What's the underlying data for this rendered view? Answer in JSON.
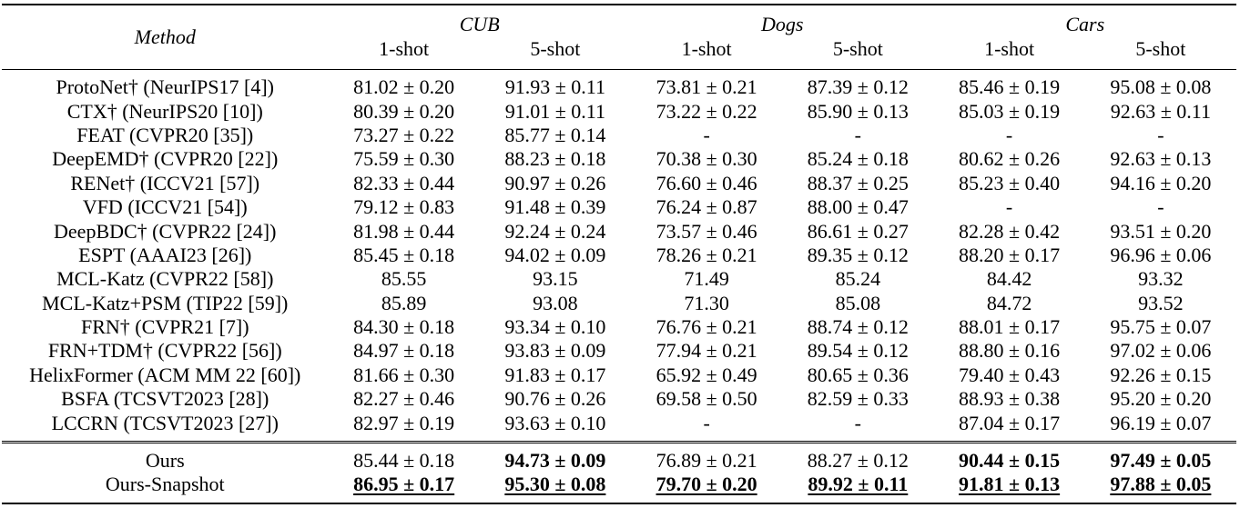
{
  "header": {
    "method_label": "Method",
    "groups": [
      "CUB",
      "Dogs",
      "Cars"
    ],
    "shots": [
      "1-shot",
      "5-shot",
      "1-shot",
      "5-shot",
      "1-shot",
      "5-shot"
    ]
  },
  "rows": [
    {
      "method": "ProtoNet† (NeurIPS17 [4])",
      "values": [
        "81.02 ± 0.20",
        "91.93 ± 0.11",
        "73.81 ± 0.21",
        "87.39 ± 0.12",
        "85.46 ± 0.19",
        "95.08 ± 0.08"
      ]
    },
    {
      "method": "CTX† (NeurIPS20 [10])",
      "values": [
        "80.39 ± 0.20",
        "91.01 ± 0.11",
        "73.22 ± 0.22",
        "85.90 ± 0.13",
        "85.03 ± 0.19",
        "92.63 ± 0.11"
      ]
    },
    {
      "method": "FEAT (CVPR20 [35])",
      "values": [
        "73.27 ± 0.22",
        "85.77 ± 0.14",
        "-",
        "-",
        "-",
        "-"
      ]
    },
    {
      "method": "DeepEMD† (CVPR20 [22])",
      "values": [
        "75.59 ± 0.30",
        "88.23 ± 0.18",
        "70.38 ± 0.30",
        "85.24 ± 0.18",
        "80.62 ± 0.26",
        "92.63 ± 0.13"
      ]
    },
    {
      "method": "RENet† (ICCV21 [57])",
      "values": [
        "82.33 ± 0.44",
        "90.97 ± 0.26",
        "76.60 ± 0.46",
        "88.37 ± 0.25",
        "85.23 ± 0.40",
        "94.16 ± 0.20"
      ]
    },
    {
      "method": "VFD (ICCV21 [54])",
      "values": [
        "79.12 ± 0.83",
        "91.48 ± 0.39",
        "76.24 ± 0.87",
        "88.00 ± 0.47",
        "-",
        "-"
      ]
    },
    {
      "method": "DeepBDC† (CVPR22 [24])",
      "values": [
        "81.98 ± 0.44",
        "92.24 ± 0.24",
        "73.57 ± 0.46",
        "86.61 ± 0.27",
        "82.28 ± 0.42",
        "93.51 ± 0.20"
      ]
    },
    {
      "method": "ESPT (AAAI23 [26])",
      "values": [
        "85.45 ± 0.18",
        "94.02 ± 0.09",
        "78.26 ± 0.21",
        "89.35 ± 0.12",
        "88.20 ± 0.17",
        "96.96 ± 0.06"
      ]
    },
    {
      "method": "MCL-Katz (CVPR22 [58])",
      "values": [
        "85.55",
        "93.15",
        "71.49",
        "85.24",
        "84.42",
        "93.32"
      ]
    },
    {
      "method": "MCL-Katz+PSM (TIP22 [59])",
      "values": [
        "85.89",
        "93.08",
        "71.30",
        "85.08",
        "84.72",
        "93.52"
      ]
    },
    {
      "method": "FRN† (CVPR21 [7])",
      "values": [
        "84.30 ± 0.18",
        "93.34 ± 0.10",
        "76.76 ± 0.21",
        "88.74 ± 0.12",
        "88.01 ± 0.17",
        "95.75 ± 0.07"
      ]
    },
    {
      "method": "FRN+TDM† (CVPR22 [56])",
      "values": [
        "84.97 ± 0.18",
        "93.83 ± 0.09",
        "77.94 ± 0.21",
        "89.54 ± 0.12",
        "88.80 ± 0.16",
        "97.02 ± 0.06"
      ]
    },
    {
      "method": "HelixFormer (ACM MM 22 [60])",
      "values": [
        "81.66 ± 0.30",
        "91.83 ± 0.17",
        "65.92 ± 0.49",
        "80.65 ± 0.36",
        "79.40 ± 0.43",
        "92.26 ± 0.15"
      ]
    },
    {
      "method": "BSFA (TCSVT2023 [28])",
      "values": [
        "82.27 ± 0.46",
        "90.76 ± 0.26",
        "69.58 ± 0.50",
        "82.59 ± 0.33",
        "88.93 ± 0.38",
        "95.20 ± 0.20"
      ]
    },
    {
      "method": "LCCRN (TCSVT2023 [27])",
      "values": [
        "82.97 ± 0.19",
        "93.63 ± 0.10",
        "-",
        "-",
        "87.04 ± 0.17",
        "96.19 ± 0.07"
      ]
    }
  ],
  "ours_rows": [
    {
      "method": "Ours",
      "values": [
        "85.44 ± 0.18",
        "94.73 ± 0.09",
        "76.89 ± 0.21",
        "88.27 ± 0.12",
        "90.44 ± 0.15",
        "97.49 ± 0.05"
      ],
      "bold": [
        false,
        true,
        false,
        false,
        true,
        true
      ],
      "underline": [
        false,
        false,
        false,
        false,
        false,
        false
      ]
    },
    {
      "method": "Ours-Snapshot",
      "values": [
        "86.95 ± 0.17",
        "95.30 ± 0.08",
        "79.70 ± 0.20",
        "89.92 ± 0.11",
        "91.81 ± 0.13",
        "97.88 ± 0.05"
      ],
      "bold": [
        true,
        true,
        true,
        true,
        true,
        true
      ],
      "underline": [
        true,
        true,
        true,
        true,
        true,
        true
      ]
    }
  ]
}
